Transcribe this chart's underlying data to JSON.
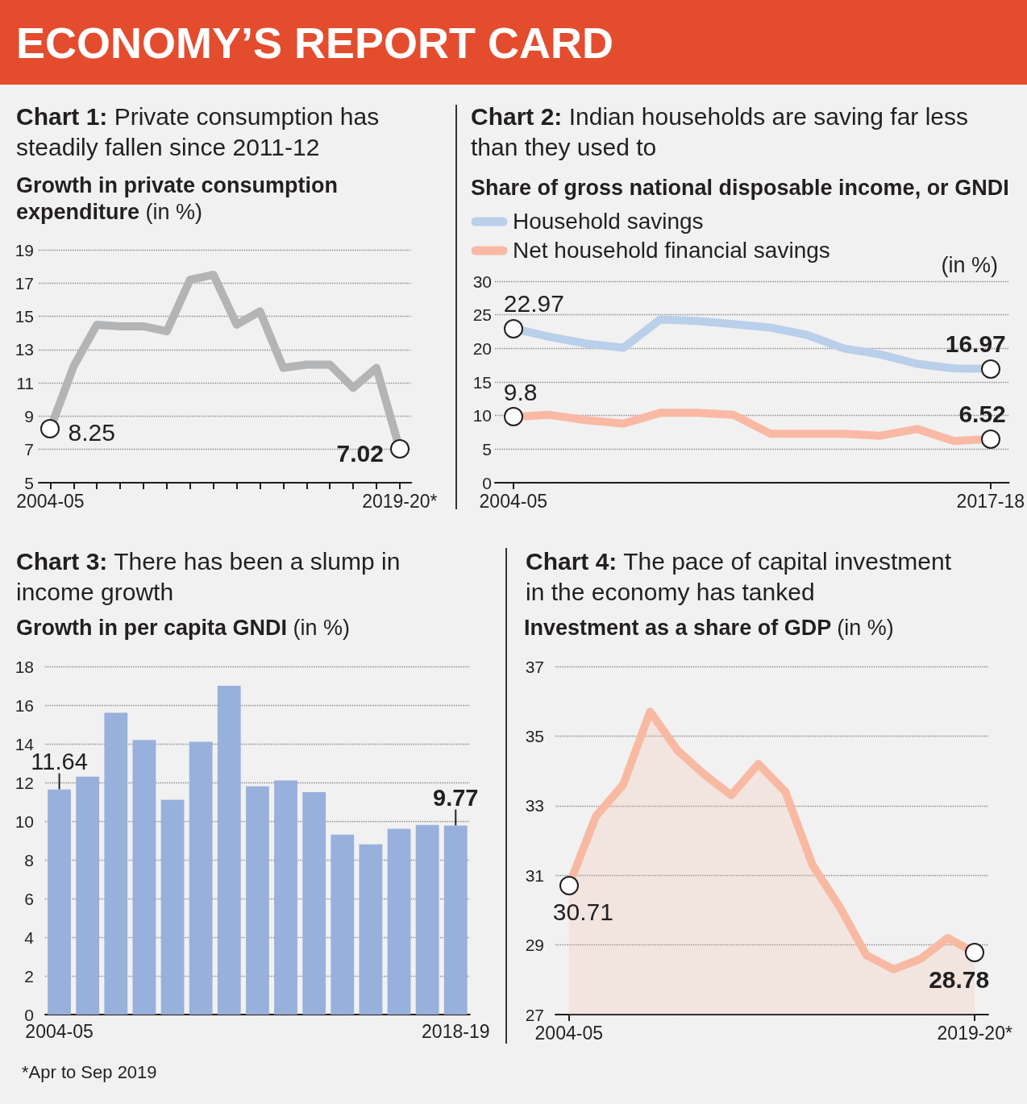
{
  "chart_data": [
    {
      "type": "other",
      "title": "ECONOMY’S REPORT CARD",
      "annotations": [
        "*Apr to Sep 2019"
      ]
    },
    {
      "type": "line",
      "title": "Chart 1: Private consumption has steadily fallen since 2011-12",
      "subtitle": "Growth in private consumption expenditure (in %)",
      "categories": [
        "2004-05",
        null,
        null,
        null,
        null,
        null,
        null,
        null,
        null,
        null,
        null,
        null,
        null,
        null,
        null,
        "2019-20*"
      ],
      "values": [
        8.25,
        12.0,
        14.5,
        14.4,
        14.4,
        14.1,
        17.2,
        17.5,
        14.5,
        15.3,
        11.9,
        12.1,
        12.1,
        10.7,
        11.9,
        7.02
      ],
      "value_labels": [
        "8.25",
        null,
        null,
        null,
        null,
        null,
        null,
        null,
        null,
        null,
        null,
        null,
        null,
        null,
        null,
        "7.02"
      ],
      "color": "#b3b4b6",
      "ylim": [
        5,
        19
      ],
      "yticks": [
        5,
        7,
        9,
        11,
        13,
        15,
        17,
        19
      ],
      "grid": "y"
    },
    {
      "type": "line",
      "title": "Chart 2: Indian households are saving far less than they used to",
      "subtitle": "Share of gross national disposable income, or GNDI",
      "ylabel": "(in %)",
      "categories": [
        "2004-05",
        null,
        null,
        null,
        null,
        null,
        null,
        null,
        null,
        null,
        null,
        null,
        null,
        "2017-18"
      ],
      "series": [
        {
          "name": "Household savings",
          "color": "#b9cfea",
          "values": [
            22.97,
            21.7,
            20.7,
            20.1,
            24.3,
            24.1,
            23.6,
            23.1,
            22.0,
            20.0,
            19.1,
            17.7,
            17.0,
            16.97
          ],
          "value_labels": [
            "22.97",
            null,
            null,
            null,
            null,
            null,
            null,
            null,
            null,
            null,
            null,
            null,
            null,
            "16.97"
          ]
        },
        {
          "name": "Net household financial savings",
          "color": "#f9b9a4",
          "values": [
            9.8,
            10.1,
            9.3,
            8.8,
            10.4,
            10.4,
            10.1,
            7.3,
            7.3,
            7.3,
            7.0,
            8.0,
            6.2,
            6.52
          ],
          "value_labels": [
            "9.8",
            null,
            null,
            null,
            null,
            null,
            null,
            null,
            null,
            null,
            null,
            null,
            null,
            "6.52"
          ]
        }
      ],
      "ylim": [
        0,
        30
      ],
      "yticks": [
        0,
        5,
        10,
        15,
        20,
        25,
        30
      ],
      "grid": "y",
      "legend": "top left"
    },
    {
      "type": "bar",
      "title": "Chart 3: There has been a slump in income growth",
      "subtitle": "Growth in per capita GNDI (in %)",
      "categories": [
        "2004-05",
        null,
        null,
        null,
        null,
        null,
        null,
        null,
        null,
        null,
        null,
        null,
        null,
        null,
        "2018-19"
      ],
      "values": [
        11.64,
        12.3,
        15.6,
        14.2,
        11.1,
        14.1,
        17.0,
        11.8,
        12.1,
        11.5,
        9.3,
        8.8,
        9.6,
        9.8,
        9.77
      ],
      "value_labels": [
        "11.64",
        null,
        null,
        null,
        null,
        null,
        null,
        null,
        null,
        null,
        null,
        null,
        null,
        null,
        "9.77"
      ],
      "color": "#98b0dc",
      "ylim": [
        0,
        18
      ],
      "yticks": [
        0,
        2,
        4,
        6,
        8,
        10,
        12,
        14,
        16,
        18
      ],
      "grid": "y"
    },
    {
      "type": "area",
      "title": "Chart 4: The pace of capital investment in the economy has tanked",
      "subtitle": "Investment as a share of GDP (in %)",
      "categories": [
        "2004-05",
        null,
        null,
        null,
        null,
        null,
        null,
        null,
        null,
        null,
        null,
        null,
        null,
        null,
        null,
        "2019-20*"
      ],
      "values": [
        30.71,
        32.7,
        33.6,
        35.7,
        34.6,
        33.9,
        33.3,
        34.2,
        33.4,
        31.3,
        30.1,
        28.7,
        28.3,
        28.6,
        29.2,
        28.78
      ],
      "value_labels": [
        "30.71",
        null,
        null,
        null,
        null,
        null,
        null,
        null,
        null,
        null,
        null,
        null,
        null,
        null,
        null,
        "28.78"
      ],
      "color": "#f8b9a3",
      "ylim": [
        27,
        37
      ],
      "yticks": [
        27,
        29,
        31,
        33,
        35,
        37
      ],
      "grid": "y"
    }
  ]
}
